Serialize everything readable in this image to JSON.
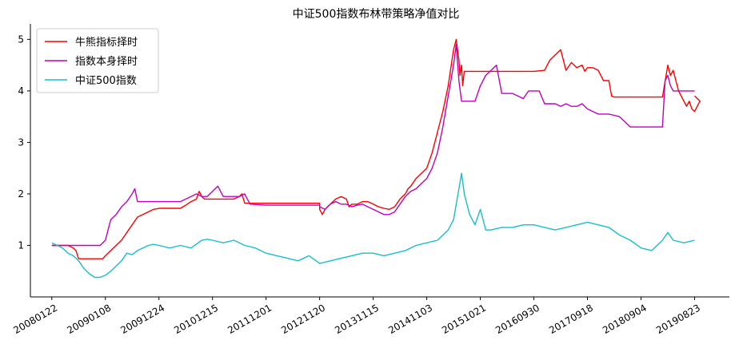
{
  "chart_data": {
    "type": "line",
    "title": "中证500指数布林带策略净值对比",
    "xlabel": "",
    "ylabel": "",
    "ylim": [
      0.0,
      5.3
    ],
    "xlim": [
      -0.4,
      12.65
    ],
    "y_ticks": [
      1,
      2,
      3,
      4,
      5
    ],
    "x_tick_positions": [
      0,
      1,
      2,
      3,
      4,
      5,
      6,
      7,
      8,
      9,
      10,
      11,
      12
    ],
    "x_tick_labels": [
      "20080122",
      "20090108",
      "20091224",
      "20101215",
      "20111201",
      "20121120",
      "20131115",
      "20141103",
      "20151021",
      "20160930",
      "20170918",
      "20180904",
      "20190823"
    ],
    "legend_position": "top-left",
    "grid": false,
    "series": [
      {
        "name": "牛熊指标择时",
        "color": "#ff0000",
        "x": [
          0,
          0.3,
          0.4,
          0.45,
          0.5,
          0.7,
          0.9,
          0.95,
          1.0,
          1.1,
          1.2,
          1.3,
          1.4,
          1.5,
          1.6,
          1.7,
          1.8,
          1.9,
          2.0,
          2.1,
          2.2,
          2.3,
          2.4,
          2.5,
          2.6,
          2.7,
          2.75,
          2.8,
          2.85,
          2.9,
          3.0,
          3.2,
          3.4,
          3.5,
          3.55,
          3.6,
          4.0,
          4.5,
          5.0,
          5.0,
          5.05,
          5.1,
          5.2,
          5.3,
          5.4,
          5.5,
          5.55,
          5.6,
          5.7,
          5.8,
          5.9,
          6.0,
          6.1,
          6.2,
          6.3,
          6.4,
          6.5,
          6.6,
          6.65,
          6.7,
          6.8,
          6.9,
          7.0,
          7.1,
          7.2,
          7.3,
          7.4,
          7.5,
          7.55,
          7.6,
          7.62,
          7.65,
          7.67,
          7.7,
          7.7,
          8.0,
          8.5,
          9.0,
          9.2,
          9.3,
          9.4,
          9.5,
          9.6,
          9.7,
          9.8,
          9.9,
          9.95,
          10.0,
          10.1,
          10.2,
          10.3,
          10.4,
          10.45,
          10.5,
          11.0,
          11.4,
          11.5,
          11.55,
          11.6,
          11.7,
          11.75,
          11.8,
          11.85,
          11.9,
          11.95,
          12.0,
          12.05,
          12.1,
          12.0
        ],
        "y": [
          1.0,
          1.0,
          0.95,
          0.9,
          0.74,
          0.74,
          0.74,
          0.74,
          0.8,
          0.9,
          1.0,
          1.1,
          1.25,
          1.4,
          1.55,
          1.6,
          1.65,
          1.7,
          1.72,
          1.72,
          1.72,
          1.72,
          1.72,
          1.78,
          1.85,
          1.9,
          2.05,
          1.95,
          1.9,
          1.9,
          1.9,
          1.9,
          1.9,
          1.95,
          2.0,
          1.82,
          1.82,
          1.82,
          1.82,
          1.7,
          1.6,
          1.7,
          1.8,
          1.9,
          1.95,
          1.9,
          1.75,
          1.8,
          1.8,
          1.85,
          1.85,
          1.8,
          1.75,
          1.72,
          1.7,
          1.75,
          1.9,
          2.0,
          2.1,
          2.15,
          2.3,
          2.4,
          2.5,
          2.8,
          3.2,
          3.6,
          4.1,
          4.8,
          5.0,
          4.6,
          4.3,
          4.5,
          4.1,
          4.38,
          4.38,
          4.38,
          4.38,
          4.38,
          4.4,
          4.6,
          4.7,
          4.8,
          4.4,
          4.55,
          4.45,
          4.5,
          4.38,
          4.45,
          4.45,
          4.4,
          4.2,
          4.2,
          3.9,
          3.88,
          3.88,
          3.88,
          4.5,
          4.3,
          4.4,
          4.0,
          3.9,
          3.8,
          3.7,
          3.8,
          3.65,
          3.6,
          3.7,
          3.8,
          3.9
        ],
        "note": "approximate"
      },
      {
        "name": "指数本身择时",
        "color": "#c000c0",
        "x": [
          0,
          0.5,
          0.8,
          0.9,
          1.0,
          1.05,
          1.1,
          1.2,
          1.3,
          1.4,
          1.5,
          1.55,
          1.6,
          1.7,
          1.8,
          2.0,
          2.2,
          2.4,
          2.5,
          2.6,
          2.7,
          2.8,
          2.9,
          3.0,
          3.1,
          3.2,
          3.4,
          3.5,
          3.6,
          3.7,
          4.0,
          4.5,
          5.0,
          5.0,
          5.1,
          5.2,
          5.3,
          5.4,
          5.5,
          5.6,
          5.7,
          5.8,
          5.9,
          6.0,
          6.1,
          6.2,
          6.3,
          6.4,
          6.5,
          6.6,
          6.7,
          6.8,
          6.9,
          7.0,
          7.1,
          7.2,
          7.3,
          7.4,
          7.5,
          7.55,
          7.6,
          7.65,
          7.7,
          7.8,
          7.9,
          8.0,
          8.1,
          8.2,
          8.3,
          8.4,
          8.45,
          8.5,
          8.6,
          8.7,
          8.8,
          8.9,
          9.0,
          9.1,
          9.2,
          9.4,
          9.5,
          9.6,
          9.7,
          9.8,
          9.9,
          10.0,
          10.2,
          10.4,
          10.6,
          10.8,
          11.0,
          11.2,
          11.4,
          11.45,
          11.5,
          11.55,
          11.6,
          11.7,
          11.8,
          11.9,
          12.0
        ],
        "y": [
          1.0,
          1.0,
          1.0,
          1.0,
          1.1,
          1.3,
          1.5,
          1.6,
          1.75,
          1.85,
          2.0,
          2.1,
          1.85,
          1.85,
          1.85,
          1.85,
          1.85,
          1.85,
          1.9,
          1.95,
          2.0,
          1.95,
          1.95,
          2.05,
          2.15,
          1.95,
          1.95,
          1.95,
          2.0,
          1.8,
          1.78,
          1.78,
          1.78,
          1.75,
          1.7,
          1.8,
          1.85,
          1.8,
          1.8,
          1.75,
          1.78,
          1.8,
          1.75,
          1.7,
          1.65,
          1.6,
          1.6,
          1.65,
          1.8,
          1.95,
          2.05,
          2.1,
          2.2,
          2.3,
          2.5,
          2.8,
          3.3,
          3.9,
          4.5,
          4.9,
          4.2,
          3.8,
          3.8,
          3.8,
          3.8,
          4.1,
          4.3,
          4.4,
          4.5,
          3.95,
          3.95,
          3.95,
          3.95,
          3.9,
          3.85,
          4.0,
          4.0,
          4.0,
          3.75,
          3.75,
          3.7,
          3.75,
          3.7,
          3.7,
          3.75,
          3.65,
          3.55,
          3.55,
          3.5,
          3.3,
          3.3,
          3.3,
          3.3,
          4.2,
          4.3,
          4.1,
          4.0,
          4.0,
          4.0,
          4.0,
          4.0
        ],
        "note": "approximate"
      },
      {
        "name": "中证500指数",
        "color": "#17becf",
        "x": [
          0,
          0.1,
          0.2,
          0.3,
          0.4,
          0.5,
          0.6,
          0.7,
          0.8,
          0.9,
          1.0,
          1.1,
          1.2,
          1.3,
          1.4,
          1.5,
          1.6,
          1.7,
          1.8,
          1.9,
          2.0,
          2.2,
          2.4,
          2.6,
          2.8,
          2.9,
          3.0,
          3.2,
          3.4,
          3.6,
          3.8,
          4.0,
          4.2,
          4.4,
          4.6,
          4.8,
          5.0,
          5.2,
          5.4,
          5.6,
          5.8,
          6.0,
          6.2,
          6.4,
          6.6,
          6.8,
          7.0,
          7.2,
          7.4,
          7.5,
          7.6,
          7.65,
          7.7,
          7.8,
          7.9,
          8.0,
          8.1,
          8.2,
          8.4,
          8.6,
          8.8,
          9.0,
          9.2,
          9.4,
          9.6,
          9.8,
          10.0,
          10.2,
          10.4,
          10.6,
          10.8,
          11.0,
          11.2,
          11.4,
          11.5,
          11.6,
          11.8,
          12.0
        ],
        "y": [
          1.05,
          1.0,
          0.95,
          0.85,
          0.8,
          0.7,
          0.55,
          0.45,
          0.38,
          0.38,
          0.42,
          0.5,
          0.6,
          0.7,
          0.85,
          0.82,
          0.9,
          0.95,
          1.0,
          1.02,
          1.0,
          0.95,
          1.0,
          0.95,
          1.1,
          1.12,
          1.1,
          1.05,
          1.1,
          1.0,
          0.95,
          0.85,
          0.8,
          0.75,
          0.7,
          0.8,
          0.65,
          0.7,
          0.75,
          0.8,
          0.85,
          0.85,
          0.8,
          0.85,
          0.9,
          1.0,
          1.05,
          1.1,
          1.3,
          1.5,
          2.1,
          2.4,
          2.0,
          1.6,
          1.4,
          1.7,
          1.3,
          1.3,
          1.35,
          1.35,
          1.4,
          1.4,
          1.35,
          1.3,
          1.35,
          1.4,
          1.45,
          1.4,
          1.35,
          1.2,
          1.1,
          0.95,
          0.9,
          1.1,
          1.25,
          1.1,
          1.05,
          1.1
        ],
        "note": "approximate"
      }
    ]
  }
}
